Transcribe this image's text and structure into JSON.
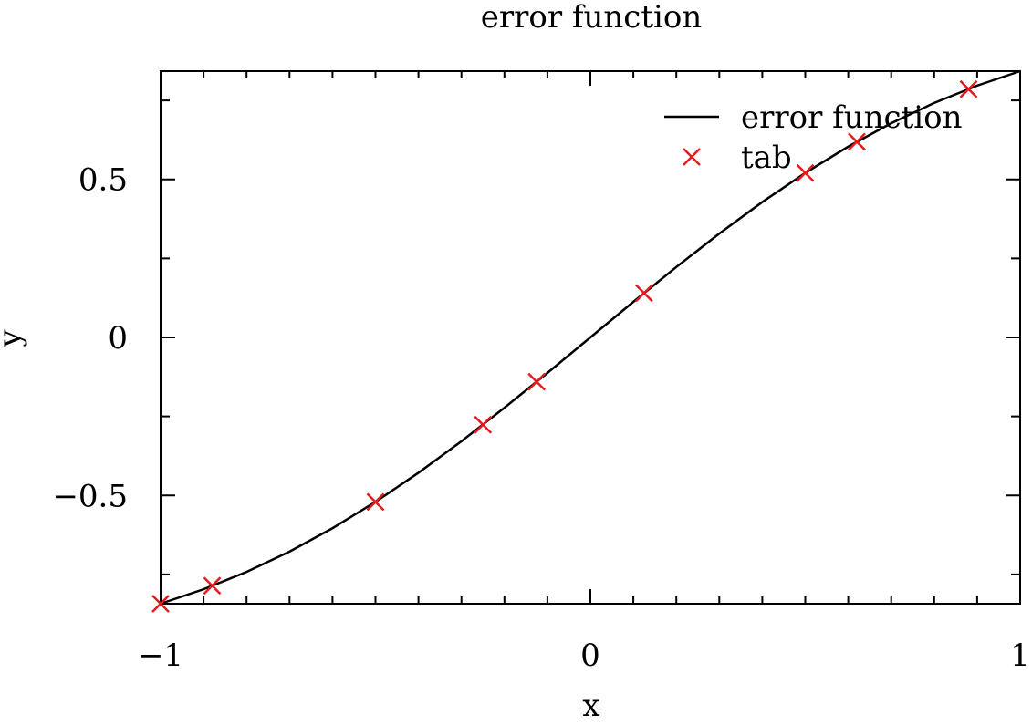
{
  "chart_data": {
    "type": "line",
    "title": "error function",
    "xlabel": "x",
    "ylabel": "y",
    "xlim": [
      -1,
      1
    ],
    "ylim": [
      -0.8427,
      0.8427
    ],
    "x_ticks": [
      -1,
      0,
      1
    ],
    "x_tick_labels": [
      "−1",
      "0",
      "1"
    ],
    "x_minor_step": 0.1,
    "y_ticks": [
      -0.5,
      0,
      0.5
    ],
    "y_tick_labels": [
      "−0.5",
      "0",
      "0.5"
    ],
    "y_minor_ticks": [
      -0.75,
      -0.25,
      0.25,
      0.75
    ],
    "grid": false,
    "legend_position": "top-right",
    "series": [
      {
        "name": "error function",
        "kind": "line",
        "color": "#000000",
        "x": [
          -1.0,
          -0.9,
          -0.8,
          -0.7,
          -0.6,
          -0.5,
          -0.4,
          -0.3,
          -0.2,
          -0.1,
          0.0,
          0.1,
          0.2,
          0.3,
          0.4,
          0.5,
          0.6,
          0.7,
          0.8,
          0.9,
          1.0
        ],
        "y": [
          -0.8427,
          -0.7969,
          -0.7421,
          -0.6778,
          -0.6039,
          -0.5205,
          -0.4284,
          -0.3286,
          -0.2227,
          -0.1125,
          0.0,
          0.1125,
          0.2227,
          0.3286,
          0.4284,
          0.5205,
          0.6039,
          0.6778,
          0.7421,
          0.7969,
          0.8427
        ]
      },
      {
        "name": "tab",
        "kind": "scatter",
        "marker": "x",
        "color": "#e41a1c",
        "x": [
          -1.0,
          -0.88,
          -0.5,
          -0.25,
          -0.125,
          0.125,
          0.5,
          0.62,
          0.88
        ],
        "y": [
          -0.8427,
          -0.7857,
          -0.5205,
          -0.2763,
          -0.1403,
          0.1403,
          0.5205,
          0.6194,
          0.7857
        ]
      }
    ]
  }
}
